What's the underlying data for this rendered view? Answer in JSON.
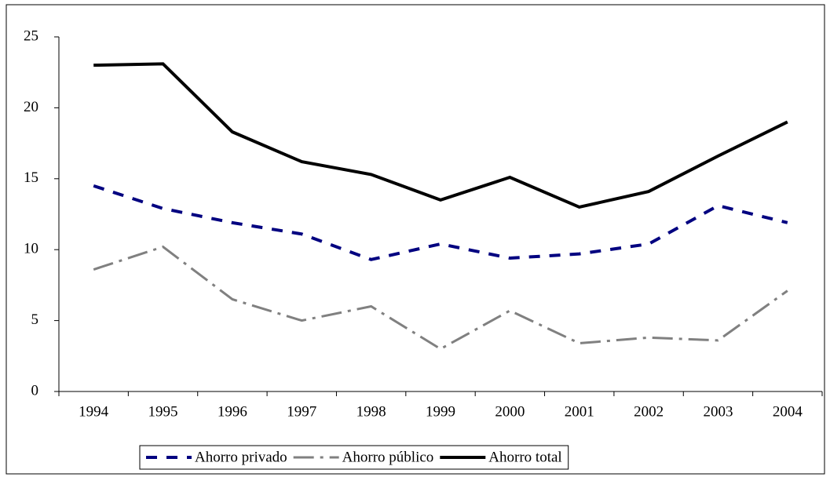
{
  "chart_data": {
    "type": "line",
    "categories": [
      "1994",
      "1995",
      "1996",
      "1997",
      "1998",
      "1999",
      "2000",
      "2001",
      "2002",
      "2003",
      "2004"
    ],
    "series": [
      {
        "name": "Ahorro privado",
        "color": "#000080",
        "dash": "14,12",
        "width": 4,
        "values": [
          14.5,
          12.9,
          11.9,
          11.1,
          9.3,
          10.4,
          9.4,
          9.7,
          10.4,
          13.1,
          11.9
        ]
      },
      {
        "name": "Ahorro público",
        "color": "#808080",
        "dash": "26,8,4,8",
        "width": 3,
        "values": [
          8.6,
          10.2,
          6.5,
          5.0,
          6.0,
          3.0,
          5.7,
          3.4,
          3.8,
          3.6,
          7.1
        ]
      },
      {
        "name": "Ahorro total",
        "color": "#000000",
        "dash": "none",
        "width": 4,
        "values": [
          23.0,
          23.1,
          18.3,
          16.2,
          15.3,
          13.5,
          15.1,
          13.0,
          14.1,
          16.6,
          19.0
        ]
      }
    ],
    "ylim": [
      0,
      25
    ],
    "yticks": [
      0,
      5,
      10,
      15,
      20,
      25
    ],
    "grid": false,
    "legend": "bottom"
  }
}
